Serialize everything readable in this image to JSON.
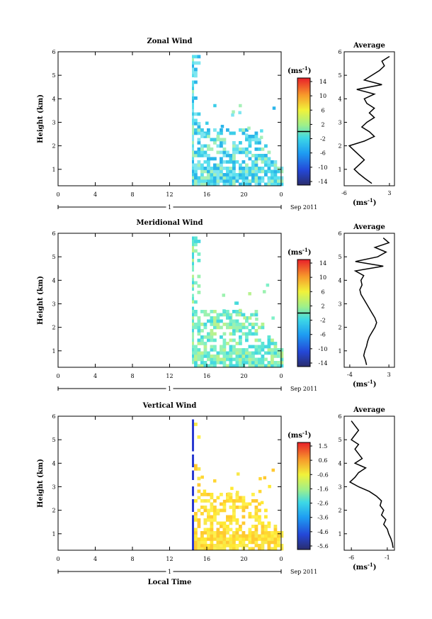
{
  "figure": {
    "common": {
      "hour_ticks": [
        "0",
        "4",
        "8",
        "12",
        "16",
        "20",
        "0"
      ],
      "day_label": "1",
      "date_label": "Sep 2011",
      "ylabel": "Height (km)",
      "xlabel": "Local Time",
      "colorbar_unit_label": "(ms",
      "colorbar_unit_exp": "-1",
      "profile_title": "Average",
      "profile_unit": "(ms",
      "profile_unit_exp": "-1",
      "profile_unit_close": ")"
    }
  },
  "chart_data": [
    {
      "type": "heatmap",
      "title": "Zonal Wind",
      "xlabel": "",
      "ylabel": "Height (km)",
      "xlim": [
        0,
        24
      ],
      "ylim": [
        0.3,
        6
      ],
      "y_ticks": [
        "1",
        "2",
        "3",
        "4",
        "5",
        "6"
      ],
      "colorbar": {
        "tick_labels": [
          "14",
          "10",
          "6",
          "2",
          "-2",
          "-6",
          "-10",
          "-14"
        ],
        "range": [
          -16,
          16
        ],
        "contour_level": "0"
      },
      "profile": {
        "title": "Average",
        "xlim": [
          -6,
          4
        ],
        "x_ticks": [
          "-6",
          "3"
        ],
        "y": [
          0.4,
          0.6,
          0.8,
          1.0,
          1.2,
          1.4,
          1.6,
          1.8,
          2.0,
          2.2,
          2.4,
          2.6,
          2.8,
          3.0,
          3.2,
          3.4,
          3.6,
          3.8,
          4.0,
          4.2,
          4.4,
          4.6,
          4.8,
          5.0,
          5.2,
          5.4,
          5.6,
          5.8
        ],
        "x": [
          -0.5,
          -1.8,
          -3.0,
          -4.0,
          -3.0,
          -2.0,
          -3.0,
          -4.0,
          -5.0,
          -2.0,
          0.0,
          -1.0,
          -2.5,
          -1.5,
          0.0,
          -1.0,
          0.0,
          -1.5,
          -2.0,
          0.0,
          -3.5,
          1.5,
          -2.0,
          -0.5,
          1.0,
          2.0,
          1.5,
          3.0
        ]
      }
    },
    {
      "type": "heatmap",
      "title": "Meridional Wind",
      "xlabel": "",
      "ylabel": "Height (km)",
      "xlim": [
        0,
        24
      ],
      "ylim": [
        0.3,
        6
      ],
      "y_ticks": [
        "1",
        "2",
        "3",
        "4",
        "5",
        "6"
      ],
      "colorbar": {
        "tick_labels": [
          "14",
          "10",
          "6",
          "2",
          "-2",
          "-6",
          "-10",
          "-14"
        ],
        "range": [
          -16,
          16
        ],
        "contour_level": "0"
      },
      "profile": {
        "title": "Average",
        "xlim": [
          -5,
          4
        ],
        "x_ticks": [
          "-4",
          "3"
        ],
        "y": [
          0.4,
          0.6,
          0.8,
          1.0,
          1.2,
          1.4,
          1.6,
          1.8,
          2.0,
          2.2,
          2.4,
          2.6,
          2.8,
          3.0,
          3.2,
          3.4,
          3.6,
          3.8,
          4.0,
          4.2,
          4.4,
          4.6,
          4.8,
          5.0,
          5.2,
          5.4,
          5.6,
          5.8
        ],
        "x": [
          -1.0,
          -1.2,
          -1.5,
          -1.3,
          -1.0,
          -0.8,
          -0.5,
          0.0,
          0.5,
          0.8,
          0.5,
          0.0,
          -0.5,
          -1.0,
          -1.5,
          -2.0,
          -2.2,
          -1.8,
          -2.0,
          -1.5,
          -3.0,
          2.0,
          -3.0,
          1.0,
          2.5,
          0.5,
          3.0,
          2.0
        ]
      }
    },
    {
      "type": "heatmap",
      "title": "Vertical Wind",
      "xlabel": "Local Time",
      "ylabel": "Height (km)",
      "xlim": [
        0,
        24
      ],
      "ylim": [
        0.3,
        6
      ],
      "y_ticks": [
        "1",
        "2",
        "3",
        "4",
        "5",
        "6"
      ],
      "colorbar": {
        "tick_labels": [
          "1.5",
          "0.6",
          "-0.6",
          "-1.6",
          "-2.6",
          "-3.6",
          "-4.6",
          "-5.6"
        ],
        "range": [
          -6,
          2
        ],
        "contour_level": ""
      },
      "profile": {
        "title": "Average",
        "xlim": [
          -7,
          0
        ],
        "x_ticks": [
          "-6",
          "-1"
        ],
        "y": [
          0.4,
          0.6,
          0.8,
          1.0,
          1.2,
          1.4,
          1.6,
          1.8,
          2.0,
          2.2,
          2.4,
          2.6,
          2.8,
          3.0,
          3.2,
          3.4,
          3.6,
          3.8,
          4.0,
          4.2,
          4.4,
          4.6,
          4.8,
          5.0,
          5.2,
          5.4,
          5.6,
          5.8
        ],
        "x": [
          -0.2,
          -0.3,
          -0.5,
          -0.8,
          -1.0,
          -1.5,
          -1.2,
          -1.8,
          -1.5,
          -2.0,
          -1.8,
          -2.5,
          -3.5,
          -5.0,
          -6.2,
          -5.5,
          -5.0,
          -4.0,
          -5.5,
          -4.5,
          -5.0,
          -5.5,
          -5.0,
          -6.0,
          -5.5,
          -5.0,
          -5.5,
          -6.0
        ]
      }
    }
  ]
}
